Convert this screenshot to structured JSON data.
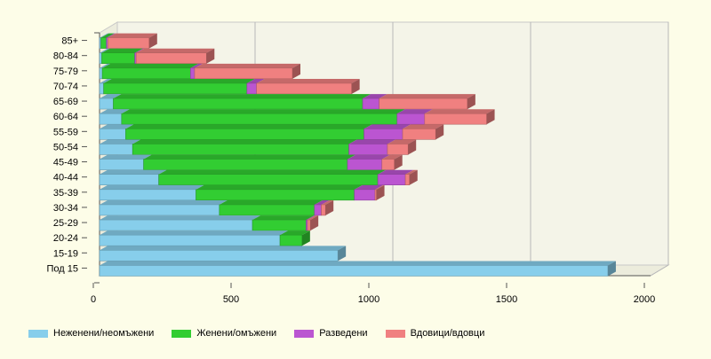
{
  "chart_data": {
    "type": "bar",
    "orientation": "horizontal",
    "stacked": true,
    "three_d": true,
    "title": "",
    "xlabel": "",
    "ylabel": "",
    "categories": [
      "Под 15",
      "15-19",
      "20-24",
      "25-29",
      "30-34",
      "35-39",
      "40-44",
      "45-49",
      "50-54",
      "55-59",
      "60-64",
      "65-69",
      "70-74",
      "75-79",
      "80-84",
      "85+"
    ],
    "xlim": [
      0,
      2000
    ],
    "xticks": [
      "0",
      "500",
      "1000",
      "1500",
      "2000"
    ],
    "grid": true,
    "legend_position": "bottom",
    "series": [
      {
        "name": "Неженени/неомъжени",
        "color": "#87ceeb",
        "values": [
          1845,
          865,
          655,
          555,
          435,
          350,
          215,
          160,
          120,
          95,
          80,
          50,
          15,
          10,
          8,
          5
        ]
      },
      {
        "name": "Женени/омъжени",
        "color": "#32cd32",
        "values": [
          0,
          0,
          80,
          195,
          345,
          575,
          795,
          740,
          785,
          865,
          1000,
          905,
          520,
          320,
          120,
          20
        ]
      },
      {
        "name": "Разведени",
        "color": "#bb55d1",
        "values": [
          0,
          0,
          0,
          5,
          25,
          75,
          100,
          125,
          140,
          140,
          100,
          60,
          35,
          15,
          5,
          5
        ]
      },
      {
        "name": "Вдовици/вдовци",
        "color": "#f08080",
        "values": [
          0,
          0,
          0,
          10,
          15,
          5,
          15,
          45,
          75,
          120,
          225,
          320,
          345,
          355,
          255,
          150
        ]
      }
    ]
  }
}
